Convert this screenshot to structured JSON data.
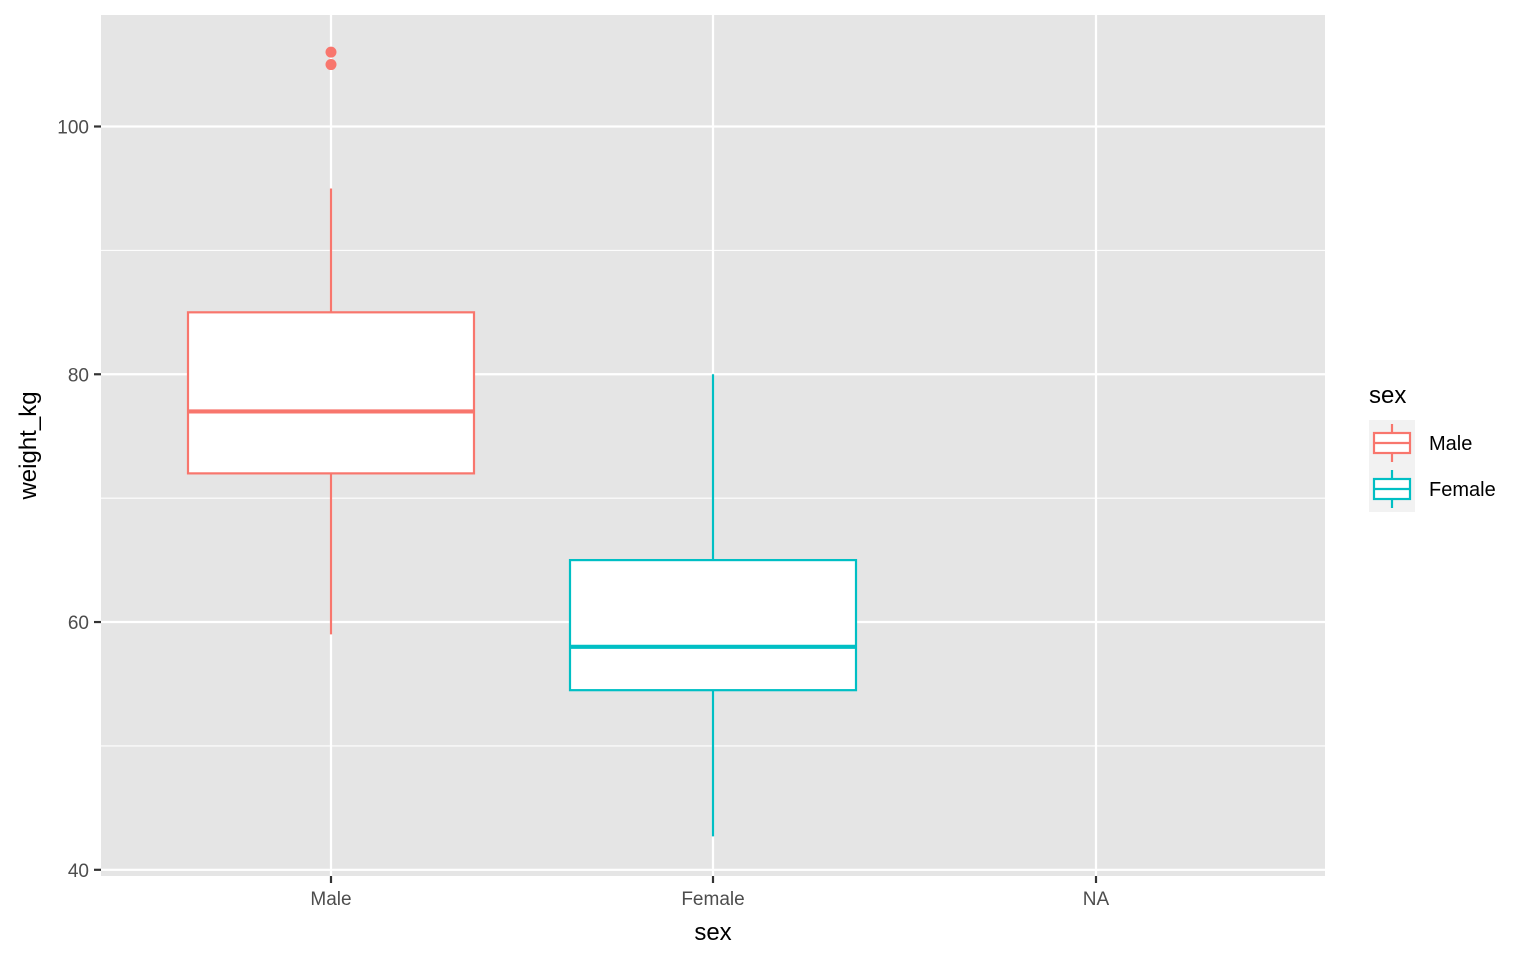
{
  "chart_data": {
    "type": "boxplot",
    "xlabel": "sex",
    "ylabel": "weight_kg",
    "categories": [
      "Male",
      "Female",
      "NA"
    ],
    "ylim": [
      39.5,
      109
    ],
    "y_ticks": [
      40,
      60,
      80,
      100
    ],
    "y_minor_ticks": [
      50,
      70,
      90
    ],
    "grid": true,
    "legend": {
      "title": "sex",
      "position": "right",
      "entries": [
        {
          "label": "Male",
          "color": "#F8766D"
        },
        {
          "label": "Female",
          "color": "#00BFC4"
        }
      ]
    },
    "boxes": [
      {
        "category": "Male",
        "color": "#F8766D",
        "min": 59,
        "q1": 72,
        "median": 77,
        "q3": 85,
        "max": 95,
        "outliers": [
          105,
          106
        ]
      },
      {
        "category": "Female",
        "color": "#00BFC4",
        "min": 42.7,
        "q1": 54.5,
        "median": 58,
        "q3": 65,
        "max": 80,
        "outliers": []
      }
    ],
    "colors": {
      "panel_background": "#E5E5E5",
      "grid": "#FFFFFF",
      "box_fill": "#FFFFFF"
    }
  }
}
